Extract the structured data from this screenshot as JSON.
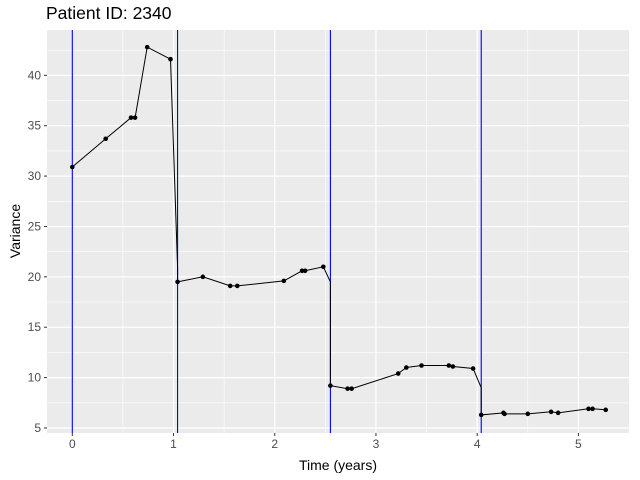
{
  "chart_data": {
    "type": "line",
    "title": "Patient ID: 2340",
    "xlabel": "Time (years)",
    "ylabel": "Variance",
    "xlim": [
      -0.25,
      5.5
    ],
    "ylim": [
      4.5,
      44.5
    ],
    "x_ticks": [
      0,
      1,
      2,
      3,
      4,
      5
    ],
    "y_ticks": [
      5,
      10,
      15,
      20,
      25,
      30,
      35,
      40
    ],
    "grid": true,
    "legend": "none",
    "colors": {
      "panel_background": "#ebebeb",
      "grid": "#ffffff",
      "series": "#000000",
      "vlines": "#0000ff"
    },
    "vlines": [
      0,
      1.04,
      2.55,
      4.04
    ],
    "series": [
      {
        "x": [
          0,
          0.33,
          0.58,
          0.62,
          0.74,
          0.97,
          1.04,
          1.04,
          1.29,
          1.56,
          1.63,
          2.09,
          2.27,
          2.3,
          2.48,
          2.55,
          2.55,
          2.72,
          2.76,
          3.22,
          3.3,
          3.45,
          3.72,
          3.76,
          3.96,
          4.04,
          4.04,
          4.26,
          4.27,
          4.5,
          4.73,
          4.8,
          5.1,
          5.14,
          5.27
        ],
        "y": [
          30.9,
          33.7,
          35.8,
          35.8,
          42.8,
          41.6,
          20.9,
          19.5,
          20.0,
          19.1,
          19.1,
          19.6,
          20.6,
          20.6,
          21.0,
          19.5,
          9.2,
          8.9,
          8.9,
          10.4,
          11.0,
          11.2,
          11.2,
          11.1,
          10.9,
          9.0,
          6.3,
          6.5,
          6.4,
          6.4,
          6.6,
          6.5,
          6.9,
          6.9,
          6.8
        ],
        "points": [
          [
            0,
            30.9
          ],
          [
            0.33,
            33.7
          ],
          [
            0.58,
            35.8
          ],
          [
            0.62,
            35.8
          ],
          [
            0.74,
            42.8
          ],
          [
            0.97,
            41.6
          ],
          [
            1.04,
            19.5
          ],
          [
            1.29,
            20.0
          ],
          [
            1.56,
            19.1
          ],
          [
            1.63,
            19.1
          ],
          [
            2.09,
            19.6
          ],
          [
            2.27,
            20.6
          ],
          [
            2.3,
            20.6
          ],
          [
            2.48,
            21.0
          ],
          [
            2.55,
            9.2
          ],
          [
            2.72,
            8.9
          ],
          [
            2.76,
            8.9
          ],
          [
            3.22,
            10.4
          ],
          [
            3.3,
            11.0
          ],
          [
            3.45,
            11.2
          ],
          [
            3.72,
            11.2
          ],
          [
            3.76,
            11.1
          ],
          [
            3.96,
            10.9
          ],
          [
            4.04,
            6.3
          ],
          [
            4.26,
            6.5
          ],
          [
            4.27,
            6.4
          ],
          [
            4.5,
            6.4
          ],
          [
            4.73,
            6.6
          ],
          [
            4.8,
            6.5
          ],
          [
            5.1,
            6.9
          ],
          [
            5.14,
            6.9
          ],
          [
            5.27,
            6.8
          ]
        ]
      }
    ]
  }
}
